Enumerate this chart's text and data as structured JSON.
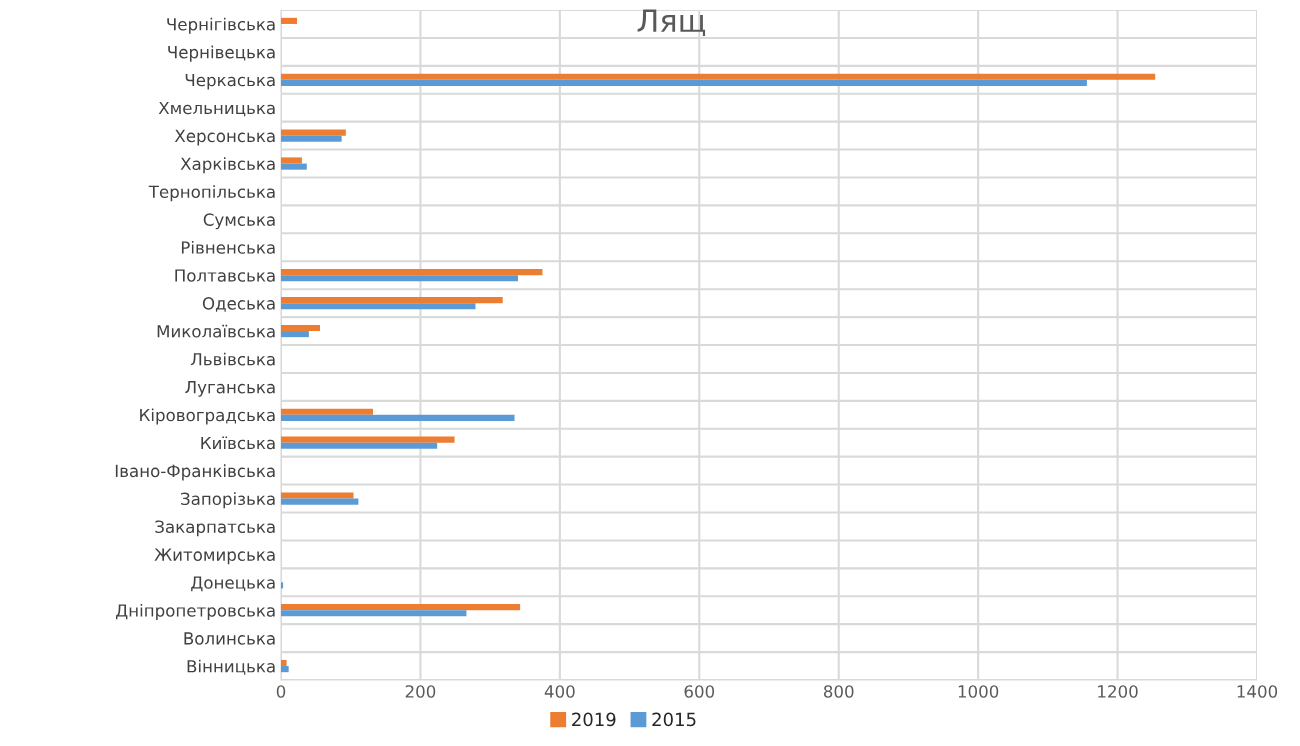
{
  "chart_data": {
    "type": "bar",
    "orientation": "horizontal",
    "title": "Лящ",
    "categories": [
      "Чернігівська",
      "Чернівецька",
      "Черкаська",
      "Хмельницька",
      "Херсонська",
      "Харківська",
      "Тернопільська",
      "Сумська",
      "Рівненська",
      "Полтавська",
      "Одеська",
      "Миколаївська",
      "Львівська",
      "Луганська",
      "Кіровоградська",
      "Київська",
      "Івано-Франківська",
      "Запорізька",
      "Закарпатська",
      "Житомирська",
      "Донецька",
      "Дніпропетровська",
      "Волинська",
      "Вінницька"
    ],
    "series": [
      {
        "name": "2019",
        "color": "#ed7d31",
        "values": [
          23,
          0,
          1254,
          0,
          93,
          30,
          0,
          0,
          0,
          375,
          318,
          56,
          0,
          0,
          132,
          249,
          0,
          104,
          0,
          0,
          0,
          343,
          0,
          8
        ]
      },
      {
        "name": "2015",
        "color": "#5b9bd5",
        "values": [
          0,
          0,
          1156,
          0,
          87,
          37,
          0,
          0,
          0,
          340,
          279,
          40,
          0,
          0,
          335,
          224,
          0,
          111,
          0,
          0,
          3,
          266,
          0,
          11
        ]
      }
    ],
    "xlim": [
      0,
      1400
    ],
    "xticks": [
      0,
      200,
      400,
      600,
      800,
      1000,
      1200,
      1400
    ],
    "grid": true,
    "legend": "bottom"
  }
}
